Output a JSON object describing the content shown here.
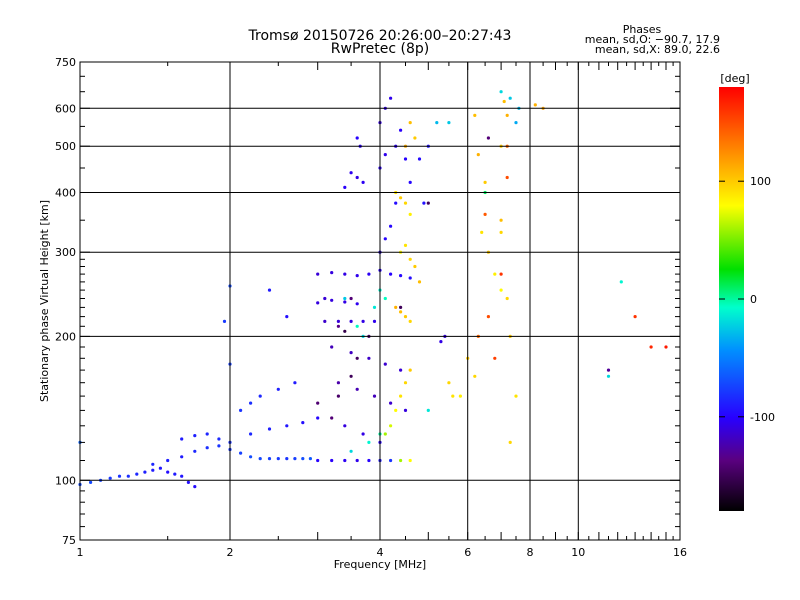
{
  "header": {
    "title": "Tromsø 20150726 20:26:00–20:27:43",
    "subtitle": "RwPretec (8p)",
    "stats_title": "Phases",
    "stats_line1": "mean, sd,O: −90.7, 17.9",
    "stats_line2": "mean, sd,X:  89.0, 22.6"
  },
  "colorbar": {
    "unit_label": "[deg]",
    "ticks": [
      {
        "value": 100,
        "label": "100"
      },
      {
        "value": 0,
        "label": "0"
      },
      {
        "value": -100,
        "label": "-100"
      }
    ],
    "range": [
      -180,
      180
    ]
  },
  "chart_data": {
    "type": "scatter",
    "xlabel": "Frequency [MHz]",
    "ylabel": "Stationary phase Virtual Height [km]",
    "x_scale": "log",
    "y_scale": "log",
    "xlim": [
      1,
      16
    ],
    "ylim": [
      75,
      750
    ],
    "x_ticks": [
      {
        "value": 1,
        "label": "1"
      },
      {
        "value": 2,
        "label": "2"
      },
      {
        "value": 4,
        "label": "4"
      },
      {
        "value": 6,
        "label": "6"
      },
      {
        "value": 8,
        "label": "8"
      },
      {
        "value": 10,
        "label": "10"
      },
      {
        "value": 16,
        "label": "16"
      }
    ],
    "x_grid": [
      2,
      4,
      6,
      8,
      10
    ],
    "y_ticks": [
      {
        "value": 750,
        "label": "750"
      },
      {
        "value": 600,
        "label": "600"
      },
      {
        "value": 500,
        "label": "500"
      },
      {
        "value": 400,
        "label": "400"
      },
      {
        "value": 300,
        "label": "300"
      },
      {
        "value": 200,
        "label": "200"
      },
      {
        "value": 100,
        "label": "100"
      },
      {
        "value": 75,
        "label": "75"
      }
    ],
    "y_grid": [
      100,
      200,
      300,
      400,
      500,
      600
    ],
    "grid": true,
    "color_by": "phase",
    "series": [
      {
        "points": [
          [
            1.0,
            98,
            -70
          ],
          [
            1.05,
            99,
            -72
          ],
          [
            1.1,
            100,
            -75
          ],
          [
            1.15,
            101,
            -78
          ],
          [
            1.2,
            102,
            -80
          ],
          [
            1.25,
            102,
            -82
          ],
          [
            1.3,
            103,
            -85
          ],
          [
            1.35,
            104,
            -88
          ],
          [
            1.4,
            105,
            -90
          ],
          [
            1.45,
            106,
            -92
          ],
          [
            1.5,
            104,
            -95
          ],
          [
            1.55,
            103,
            -90
          ],
          [
            1.6,
            102,
            -92
          ],
          [
            1.65,
            99,
            -95
          ],
          [
            1.7,
            97,
            -96
          ],
          [
            1.0,
            120,
            -60
          ],
          [
            1.4,
            108,
            -85
          ],
          [
            1.5,
            110,
            -88
          ],
          [
            1.6,
            112,
            -90
          ],
          [
            1.7,
            115,
            -85
          ],
          [
            1.8,
            117,
            -82
          ],
          [
            1.9,
            118,
            -80
          ],
          [
            2.0,
            116,
            -78
          ],
          [
            2.1,
            114,
            -75
          ],
          [
            2.2,
            112,
            -70
          ],
          [
            2.3,
            111,
            -72
          ],
          [
            2.4,
            111,
            -75
          ],
          [
            2.5,
            111,
            -78
          ],
          [
            2.6,
            111,
            -80
          ],
          [
            2.7,
            111,
            -76
          ],
          [
            2.8,
            111,
            -70
          ],
          [
            2.9,
            111,
            -65
          ],
          [
            1.6,
            122,
            -90
          ],
          [
            1.7,
            124,
            -88
          ],
          [
            1.8,
            125,
            -86
          ],
          [
            1.9,
            122,
            -84
          ],
          [
            2.0,
            120,
            -80
          ],
          [
            2.2,
            125,
            -85
          ],
          [
            2.4,
            128,
            -88
          ],
          [
            2.6,
            130,
            -92
          ],
          [
            2.8,
            132,
            -95
          ],
          [
            3.0,
            135,
            -98
          ],
          [
            2.1,
            140,
            -80
          ],
          [
            2.2,
            145,
            -82
          ],
          [
            2.3,
            150,
            -85
          ],
          [
            2.5,
            155,
            -88
          ],
          [
            2.7,
            160,
            -90
          ],
          [
            2.0,
            175,
            -75
          ],
          [
            1.95,
            215,
            -78
          ],
          [
            2.0,
            255,
            -70
          ],
          [
            2.4,
            250,
            -90
          ],
          [
            2.6,
            220,
            -95
          ]
        ]
      },
      {
        "points": [
          [
            3.0,
            110,
            -100
          ],
          [
            3.2,
            110,
            -102
          ],
          [
            3.4,
            110,
            -104
          ],
          [
            3.6,
            110,
            -106
          ],
          [
            3.8,
            110,
            -100
          ],
          [
            4.0,
            110,
            -90
          ],
          [
            4.2,
            110,
            -80
          ],
          [
            4.4,
            110,
            60
          ],
          [
            4.6,
            110,
            80
          ],
          [
            3.0,
            235,
            -110
          ],
          [
            3.1,
            240,
            -112
          ],
          [
            3.2,
            238,
            -110
          ],
          [
            3.4,
            236,
            -108
          ],
          [
            3.6,
            234,
            -105
          ],
          [
            3.0,
            270,
            -112
          ],
          [
            3.2,
            272,
            -110
          ],
          [
            3.4,
            270,
            -108
          ],
          [
            3.6,
            268,
            -106
          ],
          [
            3.8,
            270,
            -104
          ],
          [
            4.0,
            275,
            -102
          ],
          [
            4.2,
            270,
            -100
          ],
          [
            4.4,
            268,
            -98
          ],
          [
            4.6,
            265,
            -96
          ],
          [
            3.1,
            215,
            -115
          ],
          [
            3.3,
            215,
            -112
          ],
          [
            3.5,
            215,
            -110
          ],
          [
            3.7,
            215,
            -108
          ],
          [
            3.9,
            215,
            -106
          ],
          [
            3.2,
            190,
            -120
          ],
          [
            3.5,
            185,
            -118
          ],
          [
            3.8,
            180,
            -116
          ],
          [
            4.1,
            175,
            -114
          ],
          [
            4.4,
            170,
            -112
          ],
          [
            3.3,
            160,
            -125
          ],
          [
            3.6,
            155,
            -122
          ],
          [
            3.9,
            150,
            -120
          ],
          [
            4.2,
            145,
            -115
          ],
          [
            4.5,
            140,
            -110
          ],
          [
            3.4,
            130,
            -110
          ],
          [
            3.7,
            125,
            -108
          ],
          [
            4.0,
            120,
            -100
          ],
          [
            3.5,
            440,
            -105
          ],
          [
            3.6,
            430,
            -108
          ],
          [
            3.7,
            420,
            -104
          ],
          [
            3.4,
            410,
            -102
          ],
          [
            3.6,
            520,
            -100
          ],
          [
            3.65,
            500,
            -102
          ],
          [
            4.0,
            300,
            -102
          ],
          [
            4.1,
            320,
            -100
          ],
          [
            4.2,
            340,
            -98
          ],
          [
            4.3,
            380,
            -96
          ],
          [
            4.0,
            450,
            -104
          ],
          [
            4.1,
            480,
            -106
          ],
          [
            4.0,
            560,
            -110
          ],
          [
            4.1,
            600,
            -108
          ],
          [
            4.2,
            630,
            -106
          ],
          [
            4.3,
            500,
            -104
          ],
          [
            4.4,
            540,
            -102
          ],
          [
            4.5,
            470,
            -100
          ],
          [
            4.6,
            420,
            -98
          ],
          [
            4.8,
            470,
            -96
          ],
          [
            4.9,
            380,
            -94
          ],
          [
            5.0,
            500,
            -92
          ],
          [
            5.4,
            200,
            -110
          ],
          [
            5.3,
            195,
            -108
          ]
        ]
      },
      {
        "points": [
          [
            4.1,
            125,
            60
          ],
          [
            4.2,
            130,
            70
          ],
          [
            4.3,
            140,
            80
          ],
          [
            4.4,
            150,
            90
          ],
          [
            4.5,
            160,
            95
          ],
          [
            4.6,
            170,
            100
          ],
          [
            4.4,
            300,
            80
          ],
          [
            4.5,
            310,
            90
          ],
          [
            4.6,
            290,
            95
          ],
          [
            4.7,
            280,
            100
          ],
          [
            4.8,
            260,
            105
          ],
          [
            4.3,
            230,
            110
          ],
          [
            4.4,
            225,
            105
          ],
          [
            4.5,
            220,
            100
          ],
          [
            4.6,
            215,
            95
          ],
          [
            4.3,
            400,
            90
          ],
          [
            4.4,
            390,
            100
          ],
          [
            4.5,
            380,
            95
          ],
          [
            4.6,
            360,
            85
          ],
          [
            4.5,
            500,
            110
          ],
          [
            4.6,
            560,
            105
          ],
          [
            4.7,
            520,
            100
          ],
          [
            5.5,
            160,
            95
          ],
          [
            5.6,
            150,
            90
          ],
          [
            5.8,
            150,
            85
          ],
          [
            6.0,
            180,
            100
          ],
          [
            6.2,
            165,
            95
          ],
          [
            6.4,
            330,
            90
          ],
          [
            6.6,
            300,
            100
          ],
          [
            7.0,
            330,
            95
          ],
          [
            7.1,
            620,
            105
          ],
          [
            7.2,
            580,
            110
          ],
          [
            6.8,
            270,
            85
          ],
          [
            7.0,
            250,
            80
          ],
          [
            7.2,
            240,
            95
          ],
          [
            7.3,
            200,
            100
          ],
          [
            7.5,
            150,
            90
          ],
          [
            7.3,
            120,
            95
          ],
          [
            7.0,
            350,
            105
          ],
          [
            6.5,
            420,
            100
          ],
          [
            6.3,
            480,
            110
          ],
          [
            6.2,
            580,
            105
          ],
          [
            7.0,
            500,
            100
          ],
          [
            8.5,
            600,
            115
          ],
          [
            8.2,
            610,
            110
          ]
        ]
      },
      {
        "points": [
          [
            3.5,
            115,
            -20
          ],
          [
            3.8,
            120,
            -10
          ],
          [
            4.0,
            125,
            0
          ],
          [
            3.6,
            210,
            -5
          ],
          [
            3.9,
            230,
            -15
          ],
          [
            4.0,
            250,
            -10
          ],
          [
            4.1,
            240,
            -5
          ],
          [
            3.4,
            240,
            -25
          ],
          [
            3.7,
            200,
            -20
          ],
          [
            5.2,
            560,
            -30
          ],
          [
            5.5,
            560,
            -25
          ],
          [
            5.0,
            140,
            -15
          ],
          [
            6.5,
            400,
            10
          ],
          [
            7.0,
            650,
            -20
          ],
          [
            7.3,
            630,
            -25
          ],
          [
            7.6,
            600,
            -30
          ],
          [
            7.5,
            560,
            -35
          ],
          [
            11.5,
            165,
            -20
          ],
          [
            12.2,
            260,
            -10
          ]
        ]
      },
      {
        "points": [
          [
            3.2,
            135,
            -140
          ],
          [
            3.3,
            150,
            -145
          ],
          [
            3.5,
            165,
            -150
          ],
          [
            3.6,
            180,
            -148
          ],
          [
            3.3,
            210,
            -135
          ],
          [
            3.5,
            240,
            -140
          ],
          [
            4.4,
            230,
            -150
          ],
          [
            3.8,
            200,
            -145
          ],
          [
            3.0,
            145,
            -142
          ],
          [
            3.4,
            205,
            -155
          ],
          [
            6.6,
            520,
            -140
          ],
          [
            5.0,
            380,
            -150
          ],
          [
            11.5,
            170,
            -130
          ]
        ]
      },
      {
        "points": [
          [
            6.3,
            200,
            140
          ],
          [
            6.6,
            220,
            150
          ],
          [
            6.8,
            180,
            155
          ],
          [
            7.0,
            270,
            160
          ],
          [
            6.5,
            360,
            145
          ],
          [
            7.2,
            430,
            150
          ],
          [
            13.0,
            220,
            160
          ],
          [
            14.0,
            190,
            165
          ],
          [
            15.0,
            190,
            170
          ],
          [
            7.2,
            500,
            140
          ]
        ]
      }
    ]
  }
}
